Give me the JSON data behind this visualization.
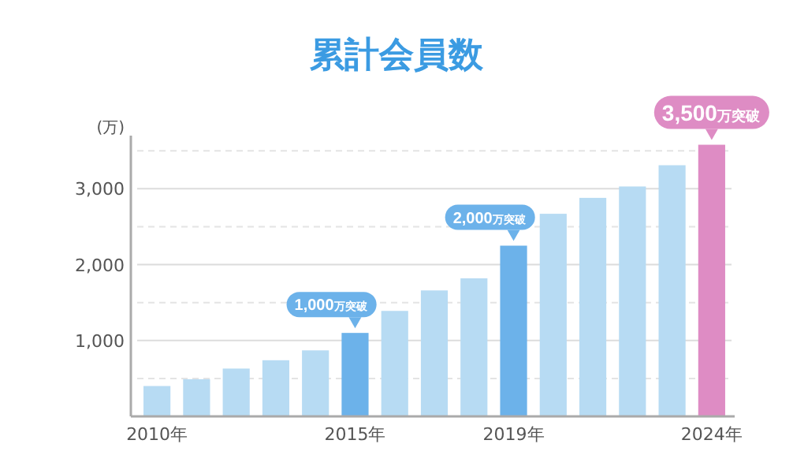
{
  "chart_data": {
    "type": "bar",
    "title": "累計会員数",
    "ylabel": "(万)",
    "categories": [
      "2010年",
      null,
      null,
      null,
      null,
      "2015年",
      null,
      null,
      null,
      "2019年",
      null,
      null,
      null,
      null,
      "2024年"
    ],
    "values": [
      400,
      490,
      630,
      740,
      870,
      1100,
      1390,
      1660,
      1820,
      2250,
      2670,
      2880,
      3030,
      3310,
      3580
    ],
    "colors": [
      "#b7dbf3",
      "#b7dbf3",
      "#b7dbf3",
      "#b7dbf3",
      "#b7dbf3",
      "#6cb2ea",
      "#b7dbf3",
      "#b7dbf3",
      "#b7dbf3",
      "#6cb2ea",
      "#b7dbf3",
      "#b7dbf3",
      "#b7dbf3",
      "#b7dbf3",
      "#de8cc4"
    ],
    "ylim": [
      0,
      3700
    ],
    "yticks": [
      {
        "value": 500,
        "label": null
      },
      {
        "value": 1000,
        "label": "1,000"
      },
      {
        "value": 1500,
        "label": null
      },
      {
        "value": 2000,
        "label": "2,000"
      },
      {
        "value": 2500,
        "label": null
      },
      {
        "value": 3000,
        "label": "3,000"
      },
      {
        "value": 3500,
        "label": null
      }
    ],
    "grid": true,
    "annotations": [
      {
        "text": "1,000万突破",
        "x": "2015年",
        "y": 1100
      },
      {
        "text": "2,000万突破",
        "x": "2019年",
        "y": 2250
      },
      {
        "text": "3,500万突破",
        "x": "2024年",
        "y": 3580
      }
    ]
  }
}
